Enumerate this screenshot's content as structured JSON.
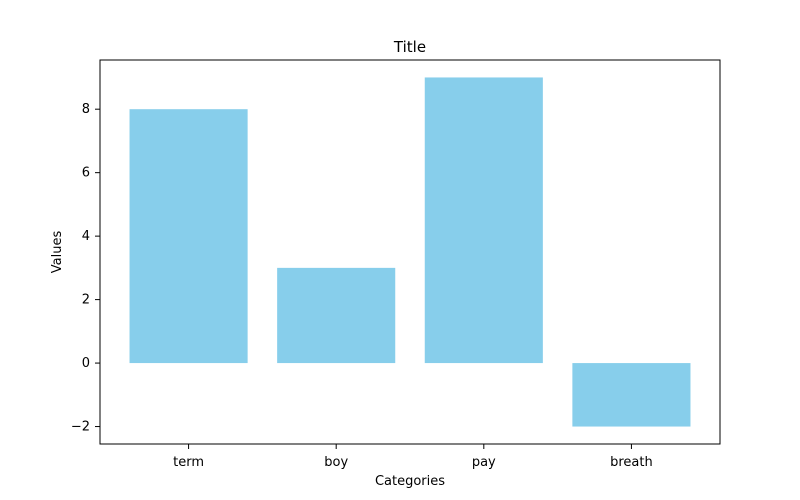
{
  "chart_data": {
    "type": "bar",
    "title": "Title",
    "xlabel": "Categories",
    "ylabel": "Values",
    "categories": [
      "term",
      "boy",
      "pay",
      "breath"
    ],
    "values": [
      8,
      3,
      9,
      -2
    ],
    "ylim": [
      -2.55,
      9.55
    ],
    "yticks": [
      -2,
      0,
      2,
      4,
      6,
      8
    ],
    "ytick_labels": [
      "−2",
      "0",
      "2",
      "4",
      "6",
      "8"
    ],
    "bar_color": "#87CEEB",
    "grid": false,
    "legend": "none"
  }
}
